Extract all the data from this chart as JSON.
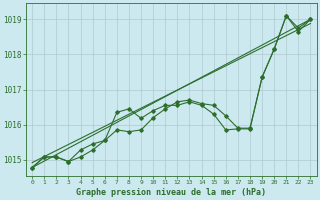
{
  "title": "Graphe pression niveau de la mer (hPa)",
  "background_color": "#cce9f0",
  "grid_color": "#b0c8d0",
  "line_color": "#2d6e2d",
  "xlim": [
    -0.5,
    23.5
  ],
  "ylim": [
    1014.55,
    1019.45
  ],
  "yticks": [
    1015,
    1016,
    1017,
    1018,
    1019
  ],
  "xticks": [
    0,
    1,
    2,
    3,
    4,
    5,
    6,
    7,
    8,
    9,
    10,
    11,
    12,
    13,
    14,
    15,
    16,
    17,
    18,
    19,
    20,
    21,
    22,
    23
  ],
  "series1_x": [
    0,
    1,
    2,
    3,
    4,
    5,
    6,
    7,
    8,
    9,
    10,
    11,
    12,
    13,
    14,
    15,
    16,
    17,
    18,
    19,
    20,
    21,
    22,
    23
  ],
  "series1_y": [
    1014.78,
    1015.08,
    1015.08,
    1014.95,
    1015.28,
    1015.45,
    1015.55,
    1015.85,
    1015.8,
    1015.85,
    1016.2,
    1016.45,
    1016.65,
    1016.7,
    1016.6,
    1016.55,
    1016.25,
    1015.9,
    1015.9,
    1017.35,
    1018.15,
    1019.1,
    1018.65,
    1019.0
  ],
  "series2_x": [
    0,
    1,
    2,
    3,
    4,
    5,
    6,
    7,
    8,
    9,
    10,
    11,
    12,
    13,
    14,
    15,
    16,
    17,
    18,
    19,
    20,
    21,
    22,
    23
  ],
  "series2_y": [
    1014.78,
    1015.08,
    1015.08,
    1014.95,
    1015.08,
    1015.28,
    1015.55,
    1016.35,
    1016.45,
    1016.18,
    1016.4,
    1016.55,
    1016.55,
    1016.65,
    1016.55,
    1016.3,
    1015.85,
    1015.88,
    1015.88,
    1017.35,
    1018.15,
    1019.1,
    1018.75,
    1019.0
  ],
  "trend1_x": [
    0,
    23
  ],
  "trend1_y": [
    1014.78,
    1019.0
  ],
  "trend2_x": [
    0,
    23
  ],
  "trend2_y": [
    1014.92,
    1018.88
  ]
}
